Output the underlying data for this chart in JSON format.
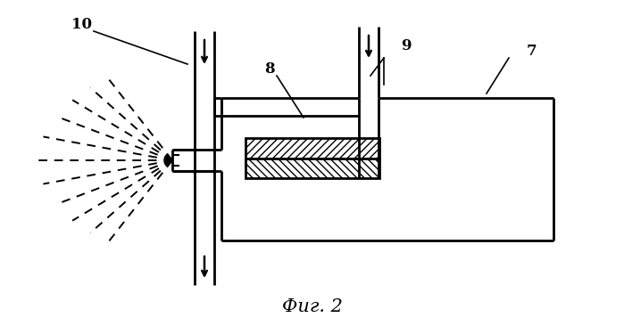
{
  "background_color": "#ffffff",
  "line_color": "#000000",
  "fig_width": 6.99,
  "fig_height": 3.75,
  "dpi": 100,
  "caption": "Фиг. 2"
}
